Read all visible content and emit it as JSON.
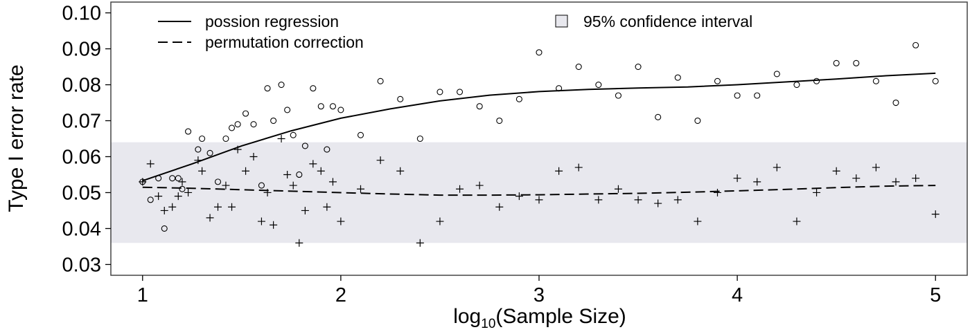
{
  "chart_data": {
    "type": "scatter",
    "xlabel_main": "log",
    "xlabel_sub": "10",
    "xlabel_rest": "(Sample Size)",
    "ylabel": "Type I error rate",
    "xlim": [
      0.84,
      5.16
    ],
    "ylim": [
      0.027,
      0.103
    ],
    "xticks": [
      1,
      2,
      3,
      4,
      5
    ],
    "yticks": [
      0.03,
      0.04,
      0.05,
      0.06,
      0.07,
      0.08,
      0.09,
      0.1
    ],
    "ytick_labels": [
      "0.03",
      "0.04",
      "0.05",
      "0.06",
      "0.07",
      "0.08",
      "0.09",
      "0.10"
    ],
    "grid": false,
    "legend": {
      "placement": "top",
      "line_items": [
        {
          "label": "possion regression",
          "style": "solid"
        },
        {
          "label": "permutation correction",
          "style": "dashed"
        }
      ],
      "box_item": {
        "label": "95% confidence interval"
      }
    },
    "confidence_band": {
      "ymin": 0.036,
      "ymax": 0.064,
      "color": "#e8e8ee"
    },
    "series": [
      {
        "name": "possion regression",
        "marker": "circle",
        "points": [
          [
            1.0,
            0.053
          ],
          [
            1.04,
            0.048
          ],
          [
            1.08,
            0.054
          ],
          [
            1.11,
            0.04
          ],
          [
            1.15,
            0.054
          ],
          [
            1.18,
            0.054
          ],
          [
            1.2,
            0.051
          ],
          [
            1.23,
            0.067
          ],
          [
            1.28,
            0.062
          ],
          [
            1.3,
            0.065
          ],
          [
            1.34,
            0.061
          ],
          [
            1.38,
            0.053
          ],
          [
            1.42,
            0.065
          ],
          [
            1.45,
            0.068
          ],
          [
            1.48,
            0.069
          ],
          [
            1.52,
            0.072
          ],
          [
            1.56,
            0.069
          ],
          [
            1.6,
            0.052
          ],
          [
            1.63,
            0.079
          ],
          [
            1.66,
            0.07
          ],
          [
            1.7,
            0.08
          ],
          [
            1.73,
            0.073
          ],
          [
            1.76,
            0.066
          ],
          [
            1.79,
            0.055
          ],
          [
            1.82,
            0.063
          ],
          [
            1.86,
            0.079
          ],
          [
            1.9,
            0.074
          ],
          [
            1.93,
            0.062
          ],
          [
            1.96,
            0.074
          ],
          [
            2.0,
            0.073
          ],
          [
            2.1,
            0.066
          ],
          [
            2.2,
            0.081
          ],
          [
            2.3,
            0.076
          ],
          [
            2.4,
            0.065
          ],
          [
            2.5,
            0.078
          ],
          [
            2.6,
            0.078
          ],
          [
            2.7,
            0.074
          ],
          [
            2.8,
            0.07
          ],
          [
            2.9,
            0.076
          ],
          [
            3.0,
            0.089
          ],
          [
            3.1,
            0.079
          ],
          [
            3.2,
            0.085
          ],
          [
            3.3,
            0.08
          ],
          [
            3.4,
            0.077
          ],
          [
            3.5,
            0.085
          ],
          [
            3.6,
            0.071
          ],
          [
            3.7,
            0.082
          ],
          [
            3.8,
            0.07
          ],
          [
            3.9,
            0.081
          ],
          [
            4.0,
            0.077
          ],
          [
            4.1,
            0.077
          ],
          [
            4.2,
            0.083
          ],
          [
            4.3,
            0.08
          ],
          [
            4.4,
            0.081
          ],
          [
            4.5,
            0.086
          ],
          [
            4.6,
            0.086
          ],
          [
            4.7,
            0.081
          ],
          [
            4.8,
            0.075
          ],
          [
            4.9,
            0.091
          ],
          [
            5.0,
            0.081
          ]
        ]
      },
      {
        "name": "permutation correction",
        "marker": "plus",
        "points": [
          [
            1.0,
            0.053
          ],
          [
            1.04,
            0.058
          ],
          [
            1.08,
            0.049
          ],
          [
            1.11,
            0.045
          ],
          [
            1.15,
            0.046
          ],
          [
            1.18,
            0.049
          ],
          [
            1.2,
            0.053
          ],
          [
            1.23,
            0.05
          ],
          [
            1.28,
            0.059
          ],
          [
            1.3,
            0.056
          ],
          [
            1.34,
            0.043
          ],
          [
            1.38,
            0.046
          ],
          [
            1.42,
            0.052
          ],
          [
            1.45,
            0.046
          ],
          [
            1.48,
            0.062
          ],
          [
            1.52,
            0.056
          ],
          [
            1.56,
            0.06
          ],
          [
            1.6,
            0.042
          ],
          [
            1.63,
            0.05
          ],
          [
            1.66,
            0.041
          ],
          [
            1.7,
            0.065
          ],
          [
            1.73,
            0.055
          ],
          [
            1.76,
            0.052
          ],
          [
            1.79,
            0.036
          ],
          [
            1.82,
            0.045
          ],
          [
            1.86,
            0.058
          ],
          [
            1.9,
            0.056
          ],
          [
            1.93,
            0.046
          ],
          [
            1.96,
            0.053
          ],
          [
            2.0,
            0.042
          ],
          [
            2.1,
            0.051
          ],
          [
            2.2,
            0.059
          ],
          [
            2.3,
            0.056
          ],
          [
            2.4,
            0.036
          ],
          [
            2.5,
            0.042
          ],
          [
            2.6,
            0.051
          ],
          [
            2.7,
            0.052
          ],
          [
            2.8,
            0.046
          ],
          [
            2.9,
            0.049
          ],
          [
            3.0,
            0.048
          ],
          [
            3.1,
            0.056
          ],
          [
            3.2,
            0.057
          ],
          [
            3.3,
            0.048
          ],
          [
            3.4,
            0.051
          ],
          [
            3.5,
            0.048
          ],
          [
            3.6,
            0.047
          ],
          [
            3.7,
            0.048
          ],
          [
            3.8,
            0.042
          ],
          [
            3.9,
            0.05
          ],
          [
            4.0,
            0.054
          ],
          [
            4.1,
            0.053
          ],
          [
            4.2,
            0.057
          ],
          [
            4.3,
            0.042
          ],
          [
            4.4,
            0.05
          ],
          [
            4.5,
            0.056
          ],
          [
            4.6,
            0.054
          ],
          [
            4.7,
            0.057
          ],
          [
            4.8,
            0.053
          ],
          [
            4.9,
            0.054
          ],
          [
            5.0,
            0.044
          ]
        ]
      }
    ],
    "fit_lines": [
      {
        "name": "possion regression",
        "style": "solid",
        "points": [
          [
            1.0,
            0.0533
          ],
          [
            1.25,
            0.058
          ],
          [
            1.5,
            0.063
          ],
          [
            1.75,
            0.0672
          ],
          [
            2.0,
            0.0707
          ],
          [
            2.25,
            0.0733
          ],
          [
            2.5,
            0.0755
          ],
          [
            2.75,
            0.0771
          ],
          [
            3.0,
            0.0781
          ],
          [
            3.25,
            0.0787
          ],
          [
            3.5,
            0.0791
          ],
          [
            3.75,
            0.0794
          ],
          [
            4.0,
            0.08
          ],
          [
            4.25,
            0.0808
          ],
          [
            4.5,
            0.0816
          ],
          [
            4.75,
            0.0825
          ],
          [
            5.0,
            0.0832
          ]
        ]
      },
      {
        "name": "permutation correction",
        "style": "dashed",
        "points": [
          [
            1.0,
            0.0515
          ],
          [
            1.25,
            0.0512
          ],
          [
            1.5,
            0.0508
          ],
          [
            1.75,
            0.0504
          ],
          [
            2.0,
            0.05
          ],
          [
            2.25,
            0.0496
          ],
          [
            2.5,
            0.0493
          ],
          [
            2.75,
            0.0493
          ],
          [
            3.0,
            0.0494
          ],
          [
            3.25,
            0.0496
          ],
          [
            3.5,
            0.0498
          ],
          [
            3.75,
            0.0501
          ],
          [
            4.0,
            0.0505
          ],
          [
            4.25,
            0.0509
          ],
          [
            4.5,
            0.0514
          ],
          [
            4.75,
            0.0518
          ],
          [
            5.0,
            0.052
          ]
        ]
      }
    ]
  }
}
